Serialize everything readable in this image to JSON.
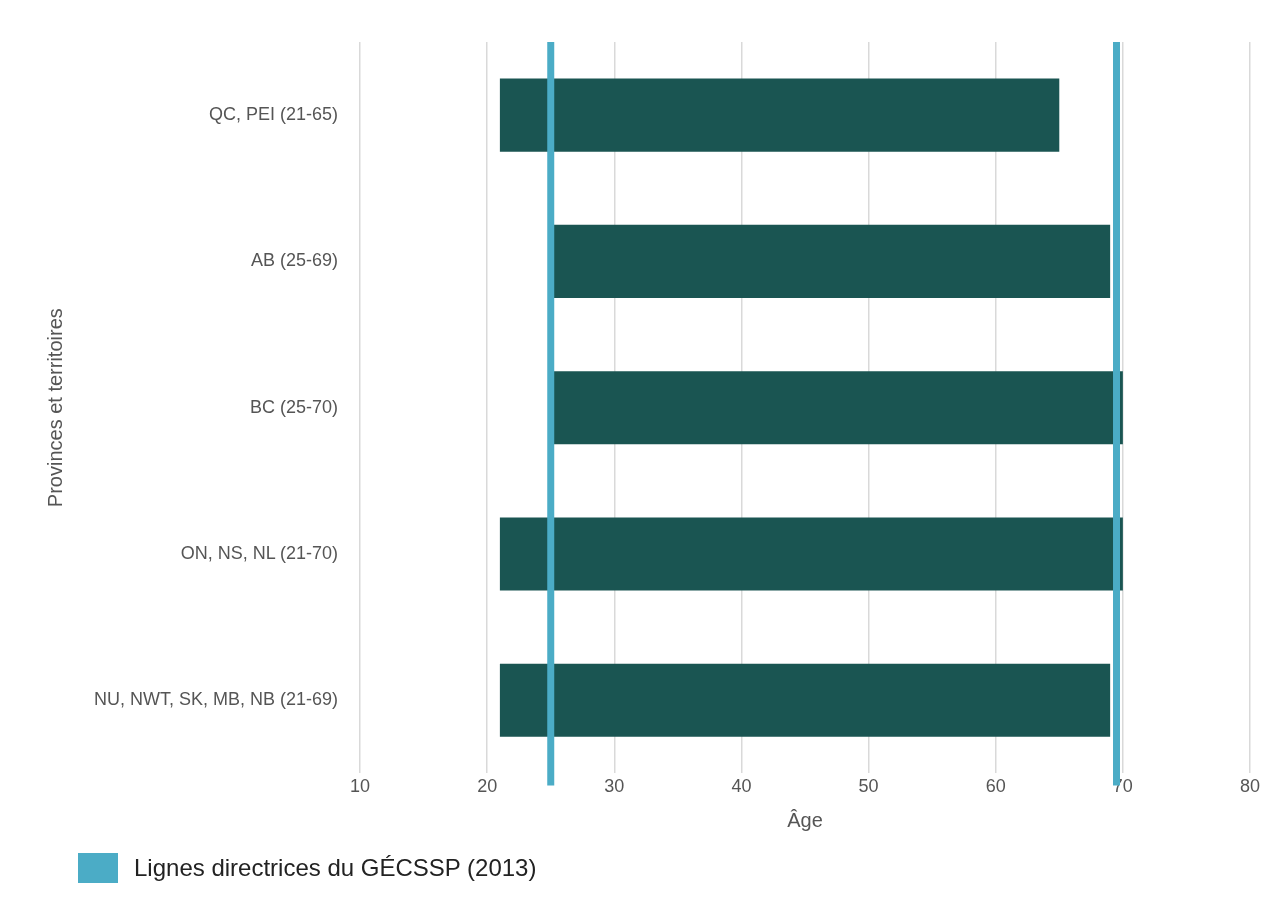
{
  "chart_data": {
    "type": "bar",
    "orientation": "horizontal",
    "categories": [
      "QC, PEI (21-65)",
      "AB (25-69)",
      "BC (25-70)",
      "ON, NS, NL (21-70)",
      "NU, NWT, SK, MB, NB (21-69)"
    ],
    "base": [
      21,
      25,
      25,
      21,
      21
    ],
    "values": [
      44,
      44,
      45,
      49,
      48
    ],
    "color": "#1a5552",
    "xlim": [
      10,
      80
    ],
    "xticks": [
      10,
      20,
      30,
      40,
      50,
      60,
      70,
      80
    ],
    "xlabel": "Âge",
    "ylabel": "Provinces et territoires",
    "grid": "x",
    "legend": "bottom left",
    "ref_lines": [
      {
        "axis": "x",
        "value": 25,
        "label": "Lignes directrices du GÉCSSP (2013)",
        "color": "#4bacc6"
      },
      {
        "axis": "x",
        "value": 69.5,
        "color": "#4bacc6"
      }
    ]
  }
}
